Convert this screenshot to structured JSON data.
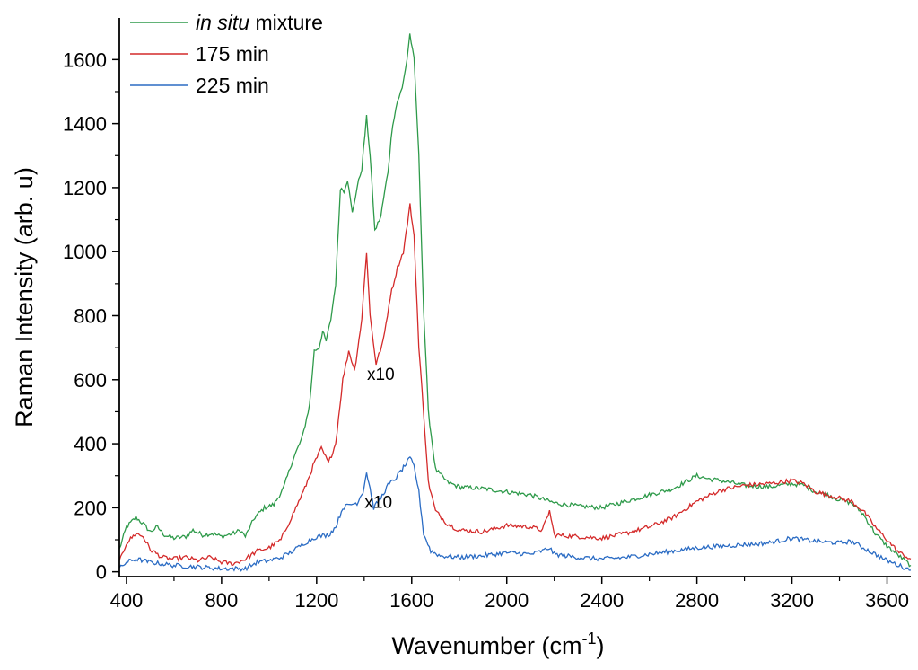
{
  "chart_data": {
    "type": "line",
    "xlabel": "Wavenumber (cm",
    "xlabel_sup": "-1",
    "xlabel_end": ")",
    "ylabel": "Raman Intensity (arb. u)",
    "xlim": [
      370,
      3700
    ],
    "ylim": [
      -15,
      1730
    ],
    "x_ticks": [
      400,
      800,
      1200,
      1600,
      2000,
      2400,
      2800,
      3200,
      3600
    ],
    "y_ticks": [
      0,
      200,
      400,
      600,
      800,
      1000,
      1200,
      1400,
      1600
    ],
    "grid": false,
    "legend_position": "top-left",
    "legend": [
      {
        "italic": "in situ",
        "text": " mixture"
      },
      {
        "italic": "",
        "text": "175 min"
      },
      {
        "italic": "",
        "text": "225 min"
      }
    ],
    "annotations": [
      {
        "text": "x10",
        "x": 1470,
        "y": 600
      },
      {
        "text": "x10",
        "x": 1460,
        "y": 200
      }
    ],
    "series": [
      {
        "color": "#2e9a4a",
        "points": [
          [
            370,
            70
          ],
          [
            400,
            140
          ],
          [
            440,
            170
          ],
          [
            470,
            150
          ],
          [
            500,
            125
          ],
          [
            530,
            140
          ],
          [
            560,
            115
          ],
          [
            600,
            105
          ],
          [
            650,
            110
          ],
          [
            680,
            130
          ],
          [
            720,
            115
          ],
          [
            760,
            120
          ],
          [
            800,
            110
          ],
          [
            850,
            120
          ],
          [
            880,
            130
          ],
          [
            900,
            110
          ],
          [
            940,
            170
          ],
          [
            980,
            200
          ],
          [
            1020,
            210
          ],
          [
            1060,
            260
          ],
          [
            1100,
            350
          ],
          [
            1140,
            420
          ],
          [
            1170,
            520
          ],
          [
            1190,
            690
          ],
          [
            1210,
            700
          ],
          [
            1225,
            750
          ],
          [
            1240,
            720
          ],
          [
            1260,
            790
          ],
          [
            1280,
            900
          ],
          [
            1300,
            1200
          ],
          [
            1315,
            1190
          ],
          [
            1330,
            1225
          ],
          [
            1350,
            1120
          ],
          [
            1370,
            1200
          ],
          [
            1390,
            1260
          ],
          [
            1410,
            1420
          ],
          [
            1425,
            1300
          ],
          [
            1445,
            1065
          ],
          [
            1470,
            1110
          ],
          [
            1500,
            1250
          ],
          [
            1520,
            1400
          ],
          [
            1540,
            1470
          ],
          [
            1560,
            1510
          ],
          [
            1580,
            1600
          ],
          [
            1592,
            1680
          ],
          [
            1610,
            1600
          ],
          [
            1630,
            1300
          ],
          [
            1650,
            820
          ],
          [
            1670,
            500
          ],
          [
            1700,
            320
          ],
          [
            1750,
            280
          ],
          [
            1800,
            265
          ],
          [
            1900,
            260
          ],
          [
            2000,
            250
          ],
          [
            2100,
            240
          ],
          [
            2200,
            215
          ],
          [
            2300,
            205
          ],
          [
            2400,
            200
          ],
          [
            2500,
            220
          ],
          [
            2600,
            240
          ],
          [
            2700,
            260
          ],
          [
            2800,
            300
          ],
          [
            2850,
            290
          ],
          [
            2900,
            285
          ],
          [
            3000,
            270
          ],
          [
            3100,
            265
          ],
          [
            3200,
            275
          ],
          [
            3250,
            270
          ],
          [
            3300,
            250
          ],
          [
            3350,
            240
          ],
          [
            3400,
            225
          ],
          [
            3450,
            215
          ],
          [
            3500,
            180
          ],
          [
            3550,
            120
          ],
          [
            3600,
            80
          ],
          [
            3650,
            50
          ],
          [
            3700,
            20
          ]
        ]
      },
      {
        "color": "#d42a2a",
        "points": [
          [
            370,
            30
          ],
          [
            400,
            90
          ],
          [
            440,
            120
          ],
          [
            470,
            110
          ],
          [
            500,
            70
          ],
          [
            550,
            45
          ],
          [
            600,
            40
          ],
          [
            650,
            45
          ],
          [
            700,
            35
          ],
          [
            750,
            45
          ],
          [
            800,
            30
          ],
          [
            850,
            25
          ],
          [
            900,
            40
          ],
          [
            950,
            65
          ],
          [
            1000,
            75
          ],
          [
            1050,
            100
          ],
          [
            1100,
            180
          ],
          [
            1150,
            260
          ],
          [
            1190,
            340
          ],
          [
            1220,
            385
          ],
          [
            1250,
            340
          ],
          [
            1280,
            400
          ],
          [
            1310,
            600
          ],
          [
            1335,
            690
          ],
          [
            1360,
            630
          ],
          [
            1390,
            790
          ],
          [
            1410,
            1000
          ],
          [
            1425,
            800
          ],
          [
            1450,
            650
          ],
          [
            1480,
            720
          ],
          [
            1510,
            860
          ],
          [
            1540,
            950
          ],
          [
            1565,
            1000
          ],
          [
            1593,
            1145
          ],
          [
            1610,
            1050
          ],
          [
            1630,
            700
          ],
          [
            1650,
            500
          ],
          [
            1670,
            280
          ],
          [
            1700,
            190
          ],
          [
            1750,
            150
          ],
          [
            1800,
            130
          ],
          [
            1900,
            125
          ],
          [
            2000,
            145
          ],
          [
            2100,
            140
          ],
          [
            2150,
            130
          ],
          [
            2180,
            190
          ],
          [
            2200,
            115
          ],
          [
            2300,
            110
          ],
          [
            2400,
            105
          ],
          [
            2500,
            120
          ],
          [
            2600,
            140
          ],
          [
            2700,
            170
          ],
          [
            2800,
            220
          ],
          [
            2900,
            255
          ],
          [
            3000,
            270
          ],
          [
            3100,
            275
          ],
          [
            3200,
            285
          ],
          [
            3250,
            275
          ],
          [
            3300,
            250
          ],
          [
            3400,
            230
          ],
          [
            3450,
            220
          ],
          [
            3500,
            190
          ],
          [
            3550,
            140
          ],
          [
            3600,
            100
          ],
          [
            3650,
            60
          ],
          [
            3700,
            40
          ]
        ]
      },
      {
        "color": "#2b6cc4",
        "points": [
          [
            370,
            10
          ],
          [
            400,
            30
          ],
          [
            440,
            40
          ],
          [
            500,
            30
          ],
          [
            550,
            25
          ],
          [
            600,
            20
          ],
          [
            700,
            15
          ],
          [
            800,
            10
          ],
          [
            900,
            10
          ],
          [
            950,
            30
          ],
          [
            1000,
            35
          ],
          [
            1050,
            45
          ],
          [
            1100,
            65
          ],
          [
            1150,
            90
          ],
          [
            1200,
            110
          ],
          [
            1250,
            115
          ],
          [
            1280,
            140
          ],
          [
            1310,
            200
          ],
          [
            1340,
            210
          ],
          [
            1370,
            215
          ],
          [
            1395,
            250
          ],
          [
            1410,
            310
          ],
          [
            1425,
            260
          ],
          [
            1440,
            200
          ],
          [
            1470,
            230
          ],
          [
            1500,
            270
          ],
          [
            1530,
            290
          ],
          [
            1560,
            320
          ],
          [
            1593,
            355
          ],
          [
            1610,
            330
          ],
          [
            1630,
            250
          ],
          [
            1650,
            120
          ],
          [
            1680,
            65
          ],
          [
            1720,
            50
          ],
          [
            1800,
            45
          ],
          [
            1900,
            50
          ],
          [
            2000,
            60
          ],
          [
            2100,
            55
          ],
          [
            2150,
            65
          ],
          [
            2180,
            75
          ],
          [
            2200,
            55
          ],
          [
            2300,
            45
          ],
          [
            2400,
            40
          ],
          [
            2500,
            45
          ],
          [
            2600,
            55
          ],
          [
            2700,
            65
          ],
          [
            2800,
            75
          ],
          [
            2900,
            80
          ],
          [
            3000,
            85
          ],
          [
            3100,
            90
          ],
          [
            3200,
            105
          ],
          [
            3300,
            95
          ],
          [
            3400,
            90
          ],
          [
            3450,
            95
          ],
          [
            3500,
            75
          ],
          [
            3550,
            55
          ],
          [
            3600,
            35
          ],
          [
            3650,
            20
          ],
          [
            3700,
            5
          ]
        ]
      }
    ]
  }
}
